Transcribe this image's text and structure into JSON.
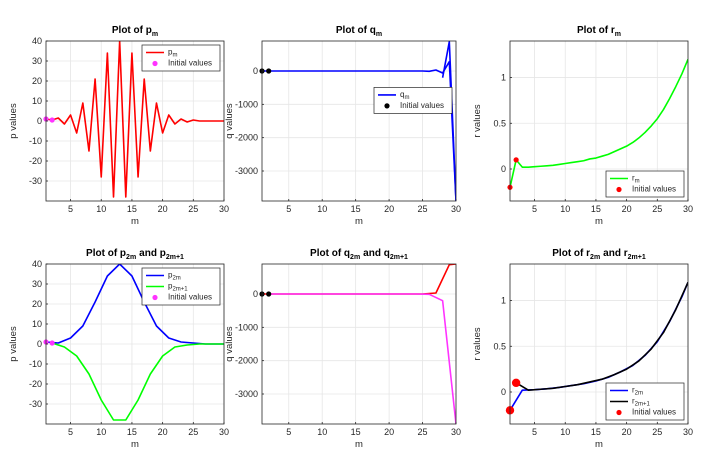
{
  "chart_data": [
    {
      "type": "line",
      "title": "Plot of p",
      "title_sub": "m",
      "title_tail": "",
      "title_sub2": "",
      "xlabel": "m",
      "ylabel": "p values",
      "xlim": [
        1,
        30
      ],
      "ylim": [
        -40,
        40
      ],
      "xticks": [
        5,
        10,
        15,
        20,
        25,
        30
      ],
      "yticks": [
        -30,
        -20,
        -10,
        0,
        10,
        20,
        30,
        40
      ],
      "grid": true,
      "legend_position": "top-right",
      "series": [
        {
          "name": "p",
          "name_sub": "m",
          "color": "#ff0000",
          "x": [
            1,
            2,
            3,
            4,
            5,
            6,
            7,
            8,
            9,
            10,
            11,
            12,
            13,
            14,
            15,
            16,
            17,
            18,
            19,
            20,
            21,
            22,
            23,
            24,
            25,
            26,
            27,
            28,
            29,
            30
          ],
          "y": [
            1,
            0.5,
            1.5,
            -1.5,
            3,
            -6,
            9,
            -15,
            21,
            -28,
            34,
            -38,
            40,
            -38,
            34,
            -28,
            21,
            -15,
            9,
            -6,
            3,
            -1.5,
            1,
            -0.5,
            0.5,
            0,
            0,
            0,
            0,
            0
          ]
        }
      ],
      "points": {
        "name": "Initial values",
        "color": "#ff33ff",
        "x": [
          1,
          2
        ],
        "y": [
          1,
          0.5
        ],
        "size": 2.6
      }
    },
    {
      "type": "line",
      "title": "Plot of q",
      "title_sub": "m",
      "title_tail": "",
      "title_sub2": "",
      "xlabel": "m",
      "ylabel": "q values",
      "xlim": [
        1,
        30
      ],
      "ylim": [
        -3900,
        900
      ],
      "xticks": [
        5,
        10,
        15,
        20,
        25,
        30
      ],
      "yticks": [
        -3000,
        -2000,
        -1000,
        0
      ],
      "grid": true,
      "legend_position": "center-right",
      "series": [
        {
          "name": "q",
          "name_sub": "m",
          "color": "#0000ff",
          "x": [
            1,
            2,
            3,
            4,
            5,
            6,
            7,
            8,
            9,
            10,
            11,
            12,
            13,
            14,
            15,
            16,
            17,
            18,
            19,
            20,
            21,
            22,
            23,
            24,
            25,
            26,
            27,
            28,
            29,
            30
          ],
          "y": [
            0,
            0,
            0,
            0,
            0,
            0,
            0,
            0,
            0,
            0,
            0,
            0,
            0,
            0,
            0,
            0,
            0,
            0,
            0,
            0,
            0,
            0,
            0,
            0,
            0,
            -10,
            30,
            -60,
            280,
            -3900
          ]
        },
        {
          "name": "",
          "name_sub": "",
          "color": "#0000ff",
          "x": [
            28,
            29,
            30
          ],
          "y": [
            -200,
            880,
            -3900
          ]
        }
      ],
      "points": {
        "name": "Initial values",
        "color": "#000000",
        "x": [
          1,
          2
        ],
        "y": [
          0,
          0
        ],
        "size": 2.6
      }
    },
    {
      "type": "line",
      "title": "Plot of r",
      "title_sub": "m",
      "title_tail": "",
      "title_sub2": "",
      "xlabel": "m",
      "ylabel": "r values",
      "xlim": [
        1,
        30
      ],
      "ylim": [
        -0.35,
        1.4
      ],
      "xticks": [
        5,
        10,
        15,
        20,
        25,
        30
      ],
      "yticks": [
        0,
        0.5,
        1
      ],
      "grid": true,
      "legend_position": "bottom-right",
      "series": [
        {
          "name": "r",
          "name_sub": "m",
          "color": "#00ff00",
          "x": [
            1,
            2,
            3,
            4,
            5,
            6,
            7,
            8,
            9,
            10,
            11,
            12,
            13,
            14,
            15,
            16,
            17,
            18,
            19,
            20,
            21,
            22,
            23,
            24,
            25,
            26,
            27,
            28,
            29,
            30
          ],
          "y": [
            -0.2,
            0.1,
            0.02,
            0.02,
            0.025,
            0.03,
            0.035,
            0.04,
            0.05,
            0.06,
            0.07,
            0.08,
            0.09,
            0.11,
            0.12,
            0.14,
            0.16,
            0.19,
            0.22,
            0.25,
            0.29,
            0.34,
            0.4,
            0.47,
            0.55,
            0.65,
            0.77,
            0.9,
            1.04,
            1.2
          ]
        }
      ],
      "points": {
        "name": "Initial values",
        "color": "#ff0000",
        "x": [
          1,
          2
        ],
        "y": [
          -0.2,
          0.1
        ],
        "size": 2.6
      }
    },
    {
      "type": "line",
      "title": "Plot of p",
      "title_sub": "2m",
      "title_tail": "and p",
      "title_sub2": "2m+1",
      "xlabel": "m",
      "ylabel": "p values",
      "xlim": [
        1,
        30
      ],
      "ylim": [
        -40,
        40
      ],
      "xticks": [
        5,
        10,
        15,
        20,
        25,
        30
      ],
      "yticks": [
        -30,
        -20,
        -10,
        0,
        10,
        20,
        30,
        40
      ],
      "grid": true,
      "legend_position": "top-right",
      "series": [
        {
          "name": "p",
          "name_sub": "2m",
          "color": "#0000ff",
          "x": [
            1,
            3,
            5,
            7,
            9,
            11,
            13,
            15,
            17,
            19,
            21,
            23,
            25,
            27,
            29,
            30
          ],
          "y": [
            1,
            0.5,
            3,
            9,
            21,
            34,
            40,
            34,
            21,
            9,
            3,
            1,
            0.5,
            0,
            0,
            0
          ]
        },
        {
          "name": "p",
          "name_sub": "2m+1",
          "color": "#00ff00",
          "x": [
            2,
            4,
            6,
            8,
            10,
            12,
            14,
            16,
            18,
            20,
            22,
            24,
            26,
            28,
            30
          ],
          "y": [
            0.5,
            -1.5,
            -6,
            -15,
            -28,
            -38,
            -38,
            -28,
            -15,
            -6,
            -1.5,
            -0.5,
            0,
            0,
            0
          ]
        }
      ],
      "points": {
        "name": "Initial values",
        "color": "#ff33ff",
        "x": [
          1,
          2
        ],
        "y": [
          1,
          0.5
        ],
        "size": 2.6
      }
    },
    {
      "type": "line",
      "title": "Plot of q",
      "title_sub": "2m",
      "title_tail": "and q",
      "title_sub2": "2m+1",
      "xlabel": "m",
      "ylabel": "q values",
      "xlim": [
        1,
        30
      ],
      "ylim": [
        -3900,
        900
      ],
      "xticks": [
        5,
        10,
        15,
        20,
        25,
        30
      ],
      "yticks": [
        -3000,
        -2000,
        -1000,
        0
      ],
      "grid": true,
      "legend_position": "none",
      "series": [
        {
          "name": "",
          "name_sub": "",
          "color": "#ff0000",
          "x": [
            1,
            3,
            5,
            7,
            9,
            11,
            13,
            15,
            17,
            19,
            21,
            23,
            25,
            27,
            29,
            30
          ],
          "y": [
            0,
            0,
            0,
            0,
            0,
            0,
            0,
            0,
            0,
            0,
            0,
            0,
            0,
            30,
            880,
            900
          ]
        },
        {
          "name": "",
          "name_sub": "",
          "color": "#ff33ff",
          "x": [
            2,
            4,
            6,
            8,
            10,
            12,
            14,
            16,
            18,
            20,
            22,
            24,
            26,
            28,
            30
          ],
          "y": [
            0,
            0,
            0,
            0,
            0,
            0,
            0,
            0,
            0,
            0,
            0,
            0,
            -10,
            -200,
            -3900
          ]
        }
      ],
      "points": {
        "name": "",
        "color": "#000000",
        "x": [
          1,
          2
        ],
        "y": [
          0,
          0
        ],
        "size": 2.6
      }
    },
    {
      "type": "line",
      "title": "Plot of r",
      "title_sub": "2m",
      "title_tail": "and r",
      "title_sub2": "2m+1",
      "xlabel": "m",
      "ylabel": "r values",
      "xlim": [
        1,
        30
      ],
      "ylim": [
        -0.35,
        1.4
      ],
      "xticks": [
        5,
        10,
        15,
        20,
        25,
        30
      ],
      "yticks": [
        0,
        0.5,
        1
      ],
      "grid": true,
      "legend_position": "bottom-right",
      "series": [
        {
          "name": "r",
          "name_sub": "2m",
          "color": "#0000ff",
          "x": [
            1,
            3,
            5,
            7,
            9,
            11,
            13,
            15,
            17,
            19,
            21,
            23,
            25,
            27,
            29,
            30
          ],
          "y": [
            -0.2,
            0.02,
            0.025,
            0.035,
            0.05,
            0.07,
            0.09,
            0.12,
            0.16,
            0.22,
            0.29,
            0.4,
            0.55,
            0.77,
            1.04,
            1.2
          ]
        },
        {
          "name": "r",
          "name_sub": "2m+1",
          "color": "#000000",
          "x": [
            2,
            4,
            6,
            8,
            10,
            12,
            14,
            16,
            18,
            20,
            22,
            24,
            26,
            28,
            30
          ],
          "y": [
            0.1,
            0.02,
            0.03,
            0.04,
            0.06,
            0.08,
            0.11,
            0.14,
            0.19,
            0.25,
            0.34,
            0.47,
            0.65,
            0.9,
            1.2
          ]
        }
      ],
      "points": {
        "name": "Initial values",
        "color": "#ff0000",
        "x": [
          1,
          2
        ],
        "y": [
          -0.2,
          0.1
        ],
        "size": 4.2
      }
    }
  ]
}
